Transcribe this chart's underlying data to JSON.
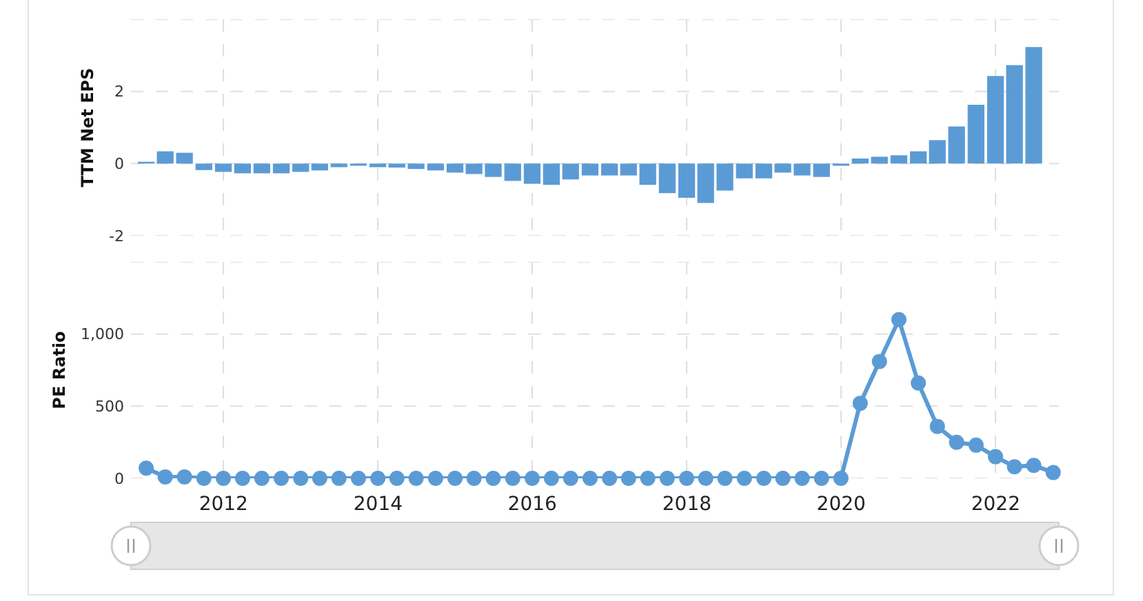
{
  "chart_data": [
    {
      "type": "bar",
      "ylabel": "TTM Net EPS",
      "color": "#5b9bd5",
      "grid": true,
      "tick_labels": "y",
      "x": [
        "2010-12-31",
        "2011-03-31",
        "2011-06-30",
        "2011-09-30",
        "2011-12-31",
        "2012-03-31",
        "2012-06-30",
        "2012-09-30",
        "2012-12-31",
        "2013-03-31",
        "2013-06-30",
        "2013-09-30",
        "2013-12-31",
        "2014-03-31",
        "2014-06-30",
        "2014-09-30",
        "2014-12-31",
        "2015-03-31",
        "2015-06-30",
        "2015-09-30",
        "2015-12-31",
        "2016-03-31",
        "2016-06-30",
        "2016-09-30",
        "2016-12-31",
        "2017-03-31",
        "2017-06-30",
        "2017-09-30",
        "2017-12-31",
        "2018-03-31",
        "2018-06-30",
        "2018-09-30",
        "2018-12-31",
        "2019-03-31",
        "2019-06-30",
        "2019-09-30",
        "2019-12-31",
        "2020-03-31",
        "2020-06-30",
        "2020-09-30",
        "2020-12-31",
        "2021-03-31",
        "2021-06-30",
        "2021-09-30",
        "2021-12-31",
        "2022-03-31",
        "2022-06-30"
      ],
      "values": [
        0.05,
        0.34,
        0.3,
        -0.18,
        -0.23,
        -0.27,
        -0.27,
        -0.27,
        -0.23,
        -0.19,
        -0.1,
        -0.06,
        -0.1,
        -0.11,
        -0.15,
        -0.19,
        -0.25,
        -0.29,
        -0.37,
        -0.48,
        -0.56,
        -0.59,
        -0.44,
        -0.33,
        -0.33,
        -0.33,
        -0.59,
        -0.82,
        -0.95,
        -1.09,
        -0.75,
        -0.41,
        -0.41,
        -0.25,
        -0.33,
        -0.37,
        -0.06,
        0.14,
        0.19,
        0.23,
        0.34,
        0.65,
        1.03,
        1.63,
        2.43,
        2.73,
        3.23
      ],
      "xlim": [
        "2010-10-20",
        "2022-10-27"
      ],
      "xticks": [
        "2012",
        "2014",
        "2016",
        "2018",
        "2020",
        "2022"
      ],
      "ylim": [
        -2,
        4
      ],
      "yticks": [
        -2,
        0,
        2,
        {
          "value": 4,
          "label": null
        }
      ]
    },
    {
      "type": "line",
      "ylabel": "PE Ratio",
      "color": "#5b9bd5",
      "marker": "circle",
      "grid": true,
      "x": [
        "2010-12-31",
        "2011-03-31",
        "2011-06-30",
        "2011-09-30",
        "2011-12-31",
        "2012-03-31",
        "2012-06-30",
        "2012-09-30",
        "2012-12-31",
        "2013-03-31",
        "2013-06-30",
        "2013-09-30",
        "2013-12-31",
        "2014-03-31",
        "2014-06-30",
        "2014-09-30",
        "2014-12-31",
        "2015-03-31",
        "2015-06-30",
        "2015-09-30",
        "2015-12-31",
        "2016-03-31",
        "2016-06-30",
        "2016-09-30",
        "2016-12-31",
        "2017-03-31",
        "2017-06-30",
        "2017-09-30",
        "2017-12-31",
        "2018-03-31",
        "2018-06-30",
        "2018-09-30",
        "2018-12-31",
        "2019-03-31",
        "2019-06-30",
        "2019-09-30",
        "2019-12-31",
        "2020-03-31",
        "2020-06-30",
        "2020-09-30",
        "2020-12-31",
        "2021-03-31",
        "2021-06-30",
        "2021-09-30",
        "2021-12-31",
        "2022-03-31",
        "2022-06-30",
        "2022-09-30"
      ],
      "values": [
        70,
        10,
        10,
        0,
        0,
        0,
        0,
        0,
        0,
        0,
        0,
        0,
        0,
        0,
        0,
        0,
        0,
        0,
        0,
        0,
        0,
        0,
        0,
        0,
        0,
        0,
        0,
        0,
        0,
        0,
        0,
        0,
        0,
        0,
        0,
        0,
        0,
        520,
        810,
        1100,
        660,
        360,
        250,
        230,
        150,
        80,
        90,
        40
      ],
      "xlim": [
        "2010-10-20",
        "2022-10-27"
      ],
      "xticks": [
        "2012",
        "2014",
        "2016",
        "2018",
        "2020",
        "2022"
      ],
      "ylim": [
        0,
        1500
      ],
      "yticks": [
        0,
        500,
        {
          "value": 1000,
          "label": "1,000"
        },
        {
          "value": 1500,
          "label": null
        }
      ]
    }
  ]
}
